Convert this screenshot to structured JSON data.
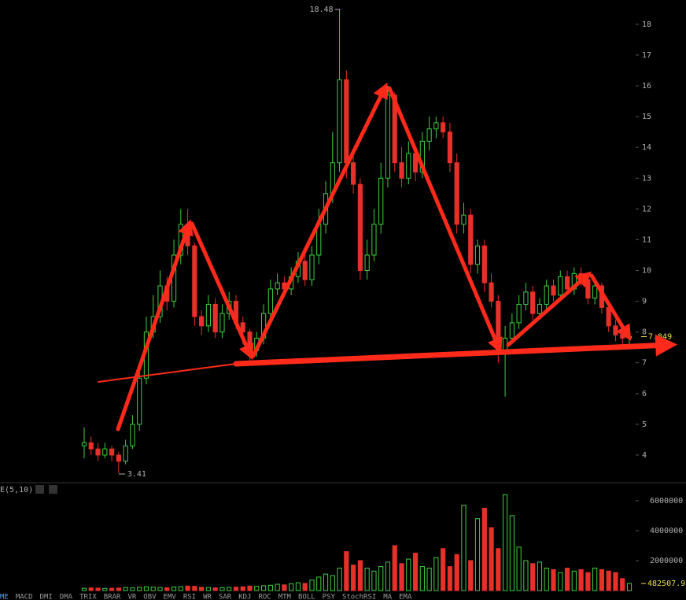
{
  "chart_data": {
    "type": "candlestick",
    "indicator_label": "E(5,10)",
    "indicator_tabs": [
      "ME",
      "MACD",
      "DMI",
      "DMA",
      "TRIX",
      "BRAR",
      "VR",
      "OBV",
      "EMV",
      "RSI",
      "WR",
      "SAR",
      "KDJ",
      "ROC",
      "MTM",
      "BOLL",
      "PSY",
      "StochRSI",
      "MA",
      "EMA"
    ],
    "up_color": "#3fcf3f",
    "down_color": "#e8302a",
    "open": [
      4.3,
      4.4,
      4.2,
      4.0,
      4.2,
      4.0,
      3.8,
      4.3,
      5.0,
      6.5,
      8.0,
      8.5,
      9.5,
      9.0,
      10.5,
      11.5,
      10.8,
      8.5,
      8.2,
      8.9,
      8.0,
      8.6,
      9.0,
      8.3,
      8.0,
      7.4,
      7.8,
      8.6,
      9.4,
      9.6,
      9.4,
      9.8,
      10.3,
      9.7,
      10.5,
      11.5,
      12.5,
      13.5,
      16.2,
      13.5,
      12.8,
      10.0,
      10.5,
      11.5,
      13.0,
      15.7,
      13.5,
      13.0,
      13.8,
      13.2,
      14.2,
      14.6,
      14.8,
      14.5,
      13.5,
      11.5,
      11.8,
      10.2,
      10.8,
      9.6,
      9.0,
      7.4,
      7.8,
      8.3,
      8.9,
      9.3,
      8.6,
      8.9,
      9.5,
      9.2,
      9.8,
      9.4,
      9.9,
      9.7,
      9.1,
      9.5,
      8.8,
      8.2,
      7.9,
      7.8
    ],
    "high": [
      4.9,
      4.6,
      4.4,
      4.4,
      4.3,
      4.1,
      4.5,
      5.3,
      6.9,
      8.5,
      9.2,
      10.0,
      9.8,
      11.0,
      12.0,
      12.0,
      10.9,
      8.7,
      9.2,
      9.1,
      8.9,
      9.3,
      9.2,
      8.5,
      8.1,
      8.0,
      8.9,
      9.7,
      9.9,
      9.8,
      10.1,
      10.6,
      10.5,
      10.8,
      12.0,
      12.9,
      14.5,
      18.48,
      16.5,
      13.9,
      13.0,
      11.0,
      12.0,
      13.5,
      16.0,
      15.8,
      14.0,
      14.2,
      14.0,
      14.5,
      15.0,
      15.0,
      15.0,
      14.8,
      13.8,
      12.2,
      12.0,
      11.0,
      11.0,
      9.9,
      9.2,
      8.2,
      8.6,
      9.2,
      9.6,
      9.5,
      9.1,
      9.7,
      9.7,
      10.0,
      10.0,
      10.1,
      10.1,
      9.9,
      9.7,
      9.6,
      9.0,
      8.4,
      8.1,
      8.0
    ],
    "low": [
      3.9,
      4.0,
      3.8,
      3.9,
      3.8,
      3.41,
      3.7,
      4.2,
      4.8,
      6.3,
      7.8,
      8.3,
      8.7,
      8.8,
      10.2,
      10.5,
      8.2,
      7.9,
      8.0,
      7.8,
      7.8,
      8.4,
      8.1,
      7.6,
      6.9,
      7.2,
      7.6,
      8.4,
      9.2,
      9.2,
      9.2,
      9.6,
      9.5,
      9.5,
      10.2,
      11.2,
      12.2,
      13.2,
      13.0,
      12.5,
      9.7,
      9.7,
      10.3,
      11.2,
      12.7,
      13.2,
      12.7,
      12.8,
      12.9,
      13.0,
      13.9,
      14.3,
      14.3,
      13.2,
      11.2,
      11.2,
      9.9,
      9.9,
      9.3,
      8.8,
      7.0,
      5.9,
      7.6,
      8.1,
      8.7,
      8.4,
      8.4,
      8.7,
      9.0,
      9.0,
      9.2,
      9.2,
      9.5,
      8.9,
      8.9,
      8.6,
      8.0,
      7.7,
      7.6,
      7.6
    ],
    "close": [
      4.4,
      4.2,
      4.0,
      4.2,
      4.0,
      3.8,
      4.3,
      5.0,
      6.5,
      8.0,
      8.5,
      9.5,
      9.0,
      10.5,
      11.5,
      10.8,
      8.5,
      8.2,
      8.9,
      8.0,
      8.6,
      9.0,
      8.3,
      8.0,
      7.4,
      7.8,
      8.6,
      9.4,
      9.6,
      9.4,
      9.8,
      10.3,
      9.7,
      10.5,
      11.5,
      12.5,
      13.5,
      16.2,
      13.5,
      12.8,
      10.0,
      10.5,
      11.5,
      13.0,
      15.7,
      13.5,
      13.0,
      13.8,
      13.2,
      14.2,
      14.6,
      14.8,
      14.5,
      13.5,
      11.5,
      11.8,
      10.2,
      10.8,
      9.6,
      9.0,
      7.4,
      7.8,
      8.3,
      8.9,
      9.3,
      8.6,
      8.9,
      9.5,
      9.2,
      9.8,
      9.4,
      9.9,
      9.7,
      9.1,
      9.5,
      8.8,
      8.2,
      7.9,
      7.8,
      7.849
    ],
    "volume": [
      150000,
      180000,
      160000,
      140000,
      150000,
      170000,
      200000,
      180000,
      220000,
      250000,
      230000,
      200000,
      190000,
      240000,
      260000,
      300000,
      280000,
      220000,
      200000,
      180000,
      190000,
      210000,
      230000,
      250000,
      300000,
      280000,
      320000,
      350000,
      420000,
      380000,
      450000,
      520000,
      480000,
      700000,
      900000,
      1100000,
      1000000,
      1500000,
      2600000,
      1700000,
      2000000,
      1500000,
      1300000,
      1600000,
      1900000,
      3000000,
      1800000,
      2100000,
      2500000,
      1600000,
      1500000,
      2200000,
      2800000,
      1600000,
      2400000,
      5700000,
      2000000,
      4800000,
      5500000,
      4200000,
      2800000,
      6400000,
      5000000,
      2900000,
      2000000,
      1800000,
      1900000,
      1500000,
      1400000,
      1200000,
      1500000,
      1300000,
      1400000,
      1200000,
      1500000,
      1400000,
      1300000,
      1200000,
      800000,
      482507.9
    ],
    "ylim": [
      3.18,
      18.79
    ],
    "yticks": [
      4,
      5,
      6,
      7,
      8,
      9,
      10,
      11,
      12,
      13,
      14,
      15,
      16,
      17,
      18
    ],
    "vlim": [
      0,
      7100000
    ],
    "vticks": [
      2000000,
      4000000,
      6000000
    ],
    "high_label": 18.48,
    "low_label": 3.41,
    "last_price_label": 7.849,
    "last_volume_label": 482507.9
  }
}
